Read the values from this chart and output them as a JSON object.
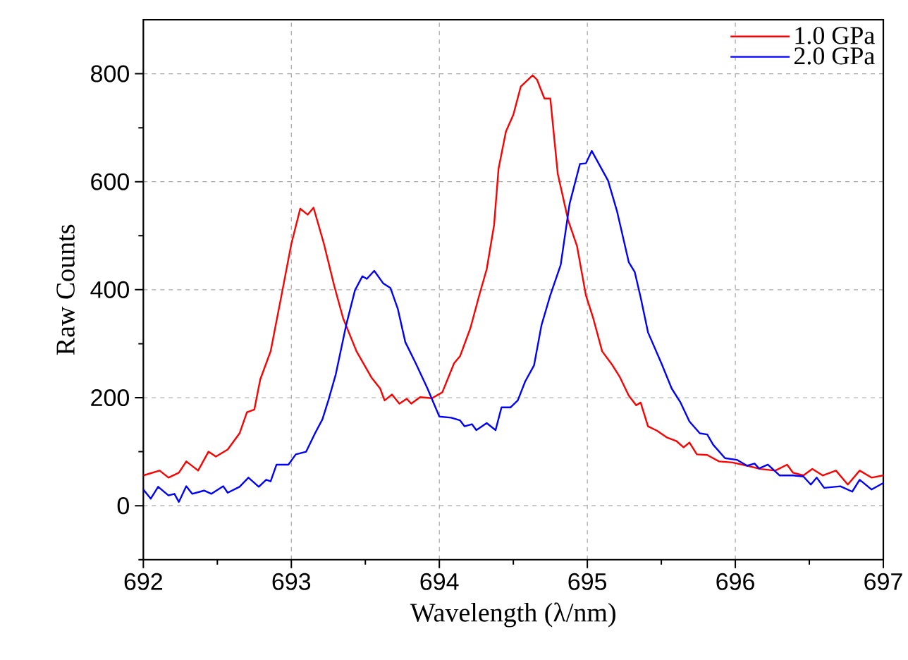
{
  "chart_data": {
    "type": "line",
    "xlabel": "Wavelength (λ/nm)",
    "ylabel": "Raw Counts",
    "xlim": [
      692,
      697
    ],
    "ylim": [
      -100,
      900
    ],
    "xticks": [
      692,
      693,
      694,
      695,
      696,
      697,
      {
        "value": 692.5,
        "label": null
      },
      {
        "value": 693.5,
        "label": null
      },
      {
        "value": 694.5,
        "label": null
      },
      {
        "value": 695.5,
        "label": null
      },
      {
        "value": 696.5,
        "label": null
      }
    ],
    "yticks": [
      0,
      200,
      400,
      600,
      800,
      {
        "value": -100,
        "label": null
      },
      {
        "value": 100,
        "label": null
      },
      {
        "value": 300,
        "label": null
      },
      {
        "value": 500,
        "label": null
      },
      {
        "value": 700,
        "label": null
      }
    ],
    "grid": true,
    "legend": "top right",
    "line_style": "solid",
    "marker": "none",
    "series": [
      {
        "name": "1.0 GPa",
        "color": "#ff0000",
        "x": [
          692.0,
          692.11,
          692.17,
          692.24,
          692.29,
          692.37,
          692.44,
          692.49,
          692.57,
          692.65,
          692.7,
          692.75,
          692.79,
          692.86,
          692.94,
          693.0,
          693.06,
          693.11,
          693.15,
          693.22,
          693.29,
          693.35,
          693.44,
          693.54,
          693.6,
          693.63,
          693.68,
          693.73,
          693.78,
          693.81,
          693.87,
          693.95,
          694.02,
          694.1,
          694.14,
          694.21,
          694.27,
          694.32,
          694.37,
          694.4,
          694.45,
          694.5,
          694.55,
          694.63,
          694.66,
          694.71,
          694.75,
          694.8,
          694.87,
          694.93,
          694.99,
          695.04,
          695.1,
          695.17,
          695.22,
          695.28,
          695.33,
          695.36,
          695.41,
          695.47,
          695.54,
          695.6,
          695.65,
          695.69,
          695.74,
          695.81,
          695.89,
          695.98,
          696.08,
          696.17,
          696.27,
          696.35,
          696.39,
          696.46,
          696.52,
          696.59,
          696.68,
          696.76,
          696.84,
          696.92,
          697.0
        ],
        "values": [
          56,
          65,
          52,
          61,
          82,
          65,
          100,
          91,
          104,
          134,
          173,
          178,
          234,
          286,
          399,
          485,
          550,
          539,
          552,
          485,
          407,
          347,
          286,
          238,
          217,
          195,
          206,
          189,
          198,
          189,
          201,
          199,
          210,
          264,
          277,
          329,
          390,
          438,
          520,
          624,
          693,
          724,
          776,
          797,
          789,
          754,
          754,
          615,
          529,
          481,
          390,
          347,
          286,
          260,
          238,
          204,
          186,
          191,
          147,
          139,
          126,
          120,
          108,
          117,
          95,
          94,
          82,
          80,
          74,
          68,
          65,
          76,
          61,
          56,
          68,
          56,
          65,
          39,
          65,
          52,
          56
        ]
      },
      {
        "name": "2.0 GPa",
        "color": "#0000ff",
        "x": [
          692.0,
          692.05,
          692.1,
          692.17,
          692.21,
          692.24,
          692.29,
          692.33,
          692.41,
          692.46,
          692.54,
          692.57,
          692.65,
          692.71,
          692.78,
          692.83,
          692.86,
          692.9,
          692.98,
          693.03,
          693.1,
          693.16,
          693.21,
          693.25,
          693.3,
          693.37,
          693.43,
          693.48,
          693.51,
          693.56,
          693.62,
          693.67,
          693.72,
          693.77,
          693.84,
          693.92,
          694.0,
          694.08,
          694.14,
          694.17,
          694.22,
          694.25,
          694.32,
          694.38,
          694.42,
          694.48,
          694.53,
          694.58,
          694.64,
          694.69,
          694.75,
          694.82,
          694.88,
          694.95,
          694.99,
          695.03,
          695.07,
          695.14,
          695.2,
          695.28,
          695.32,
          695.36,
          695.41,
          695.5,
          695.57,
          695.63,
          695.69,
          695.76,
          695.81,
          695.85,
          695.93,
          696.01,
          696.08,
          696.13,
          696.16,
          696.22,
          696.3,
          696.39,
          696.46,
          696.51,
          696.55,
          696.6,
          696.71,
          696.79,
          696.84,
          696.92,
          697.0
        ],
        "values": [
          30,
          13,
          35,
          19,
          22,
          7,
          36,
          22,
          28,
          22,
          36,
          24,
          35,
          52,
          35,
          48,
          45,
          76,
          76,
          95,
          100,
          134,
          160,
          195,
          243,
          334,
          399,
          425,
          420,
          435,
          412,
          403,
          364,
          303,
          264,
          217,
          165,
          163,
          158,
          147,
          151,
          140,
          153,
          140,
          182,
          182,
          195,
          230,
          260,
          334,
          390,
          446,
          559,
          633,
          634,
          657,
          637,
          602,
          546,
          451,
          433,
          386,
          321,
          264,
          217,
          191,
          156,
          134,
          132,
          113,
          88,
          85,
          74,
          78,
          69,
          76,
          56,
          56,
          54,
          39,
          52,
          33,
          36,
          26,
          48,
          30,
          42
        ]
      }
    ]
  }
}
